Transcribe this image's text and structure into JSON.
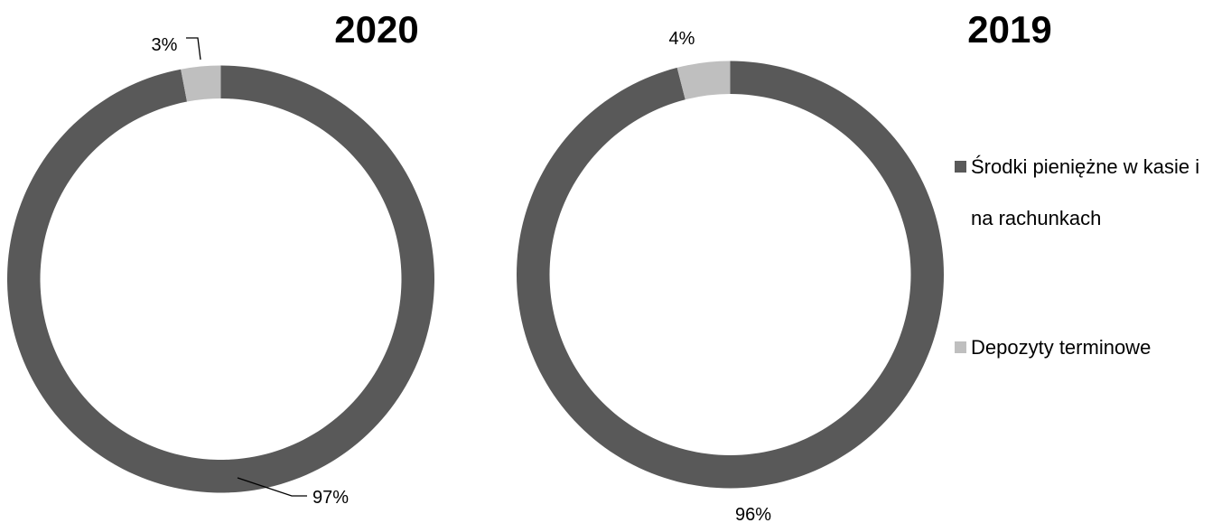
{
  "chart_data": [
    {
      "type": "pie",
      "variant": "doughnut",
      "title": "2020",
      "categories": [
        "Środki pieniężne w kasie i na rachunkach",
        "Depozyty terminowe"
      ],
      "values": [
        97,
        3
      ],
      "data_labels": [
        "97%",
        "3%"
      ],
      "colors": [
        "#595959",
        "#bfbfbf"
      ]
    },
    {
      "type": "pie",
      "variant": "doughnut",
      "title": "2019",
      "categories": [
        "Środki pieniężne w kasie i na rachunkach",
        "Depozyty terminowe"
      ],
      "values": [
        96,
        4
      ],
      "data_labels": [
        "96%",
        "4%"
      ],
      "colors": [
        "#595959",
        "#bfbfbf"
      ]
    }
  ],
  "legend": {
    "placement": "right",
    "items": [
      {
        "label_line1": "Środki pieniężne w kasie i",
        "label_line2": "na rachunkach",
        "color": "#595959"
      },
      {
        "label_line1": "Depozyty terminowe",
        "label_line2": "",
        "color": "#bfbfbf"
      }
    ]
  }
}
